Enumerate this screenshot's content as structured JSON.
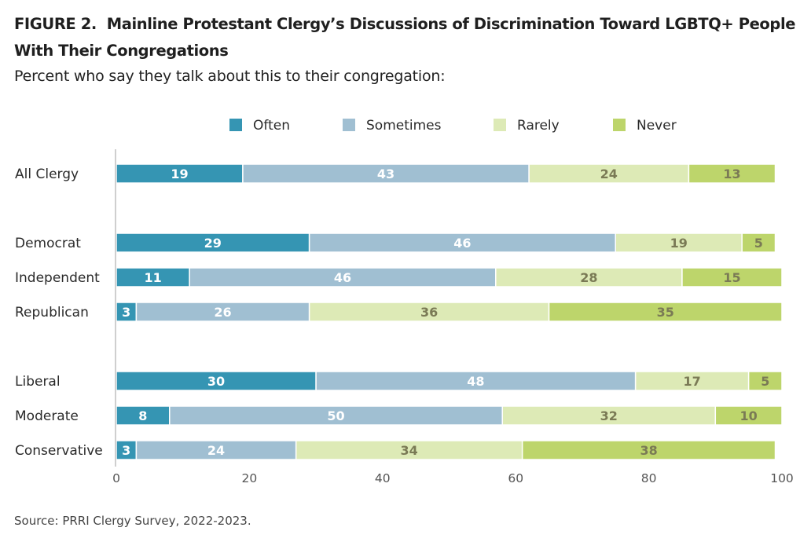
{
  "figure": {
    "title_prefix": "FIGURE 2.",
    "title": "Mainline Protestant Clergy’s Discussions of Discrimination Toward LGBTQ+ People With Their Congregations",
    "subtitle": "Percent who say they talk about this to their congregation:",
    "source": "Source: PRRI Clergy Survey, 2022-2023."
  },
  "colors": {
    "often": "#3595b3",
    "sometimes": "#a0bfd2",
    "rarely": "#ddeab6",
    "never": "#bdd56b",
    "label_dark_bg": "#ffffff",
    "label_light_bg": "#7a7a55"
  },
  "chart_data": {
    "type": "bar",
    "orientation": "horizontal",
    "stacked": true,
    "categories": [
      "All Clergy",
      "Democrat",
      "Independent",
      "Republican",
      "Liberal",
      "Moderate",
      "Conservative"
    ],
    "groups": [
      [
        "All Clergy"
      ],
      [
        "Democrat",
        "Independent",
        "Republican"
      ],
      [
        "Liberal",
        "Moderate",
        "Conservative"
      ]
    ],
    "series": [
      {
        "name": "Often",
        "values": [
          19,
          29,
          11,
          3,
          30,
          8,
          3
        ]
      },
      {
        "name": "Sometimes",
        "values": [
          43,
          46,
          46,
          26,
          48,
          50,
          24
        ]
      },
      {
        "name": "Rarely",
        "values": [
          24,
          19,
          28,
          36,
          17,
          32,
          34
        ]
      },
      {
        "name": "Never",
        "values": [
          13,
          5,
          15,
          35,
          5,
          10,
          38
        ]
      }
    ],
    "xlim": [
      0,
      100
    ],
    "xticks": [
      0,
      20,
      40,
      60,
      80,
      100
    ],
    "legend_position": "top",
    "grid": false,
    "data_labels": true
  }
}
